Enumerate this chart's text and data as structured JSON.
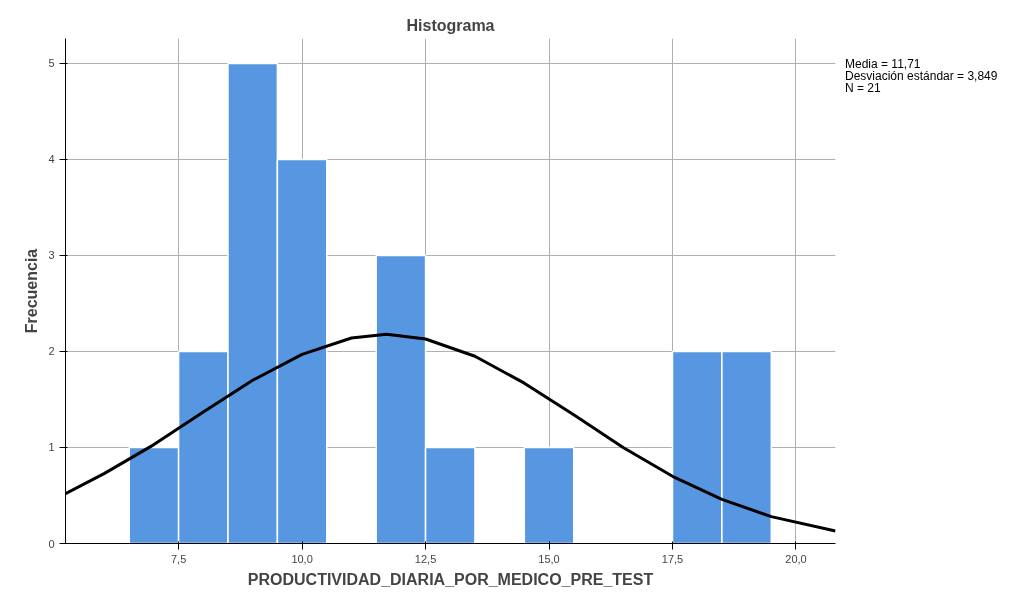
{
  "chart_data": {
    "type": "histogram",
    "title": "Histograma",
    "xlabel": "PRODUCTIVIDAD_DIARIA_POR_MEDICO_PRE_TEST",
    "ylabel": "Frecuencia",
    "bins": [
      6.5,
      7.5,
      8.5,
      9.5,
      10.5,
      11.5,
      12.5,
      13.5,
      14.5,
      15.5,
      16.5,
      17.5,
      18.5,
      19.5
    ],
    "values": [
      1,
      2,
      5,
      4,
      0,
      3,
      1,
      0,
      1,
      0,
      0,
      2,
      2
    ],
    "color": "#5796e0",
    "series": [
      {
        "type": "line",
        "color": "#000000",
        "x": [
          5.21,
          6,
          7,
          8,
          9,
          10,
          11,
          11.71,
          12.5,
          13.5,
          14.5,
          15.5,
          16.5,
          17.5,
          18.5,
          19.5,
          20.8
        ],
        "values": [
          0.52,
          0.73,
          1.03,
          1.37,
          1.7,
          1.97,
          2.14,
          2.18,
          2.13,
          1.95,
          1.67,
          1.34,
          1.0,
          0.7,
          0.46,
          0.28,
          0.13
        ]
      }
    ],
    "xlim": [
      5.21,
      20.8
    ],
    "xticks": [
      {
        "value": 7.5,
        "label": "7,5"
      },
      {
        "value": 10,
        "label": "10,0"
      },
      {
        "value": 12.5,
        "label": "12,5"
      },
      {
        "value": 15,
        "label": "15,0"
      },
      {
        "value": 17.5,
        "label": "17,5"
      },
      {
        "value": 20,
        "label": "20,0"
      }
    ],
    "ylim": [
      0,
      5.26
    ],
    "yticks": [
      0,
      1,
      2,
      3,
      4,
      5
    ],
    "grid": true,
    "annotations": [
      "Media = 11,71",
      "Desviación estándar = 3,849",
      "N = 21"
    ]
  }
}
